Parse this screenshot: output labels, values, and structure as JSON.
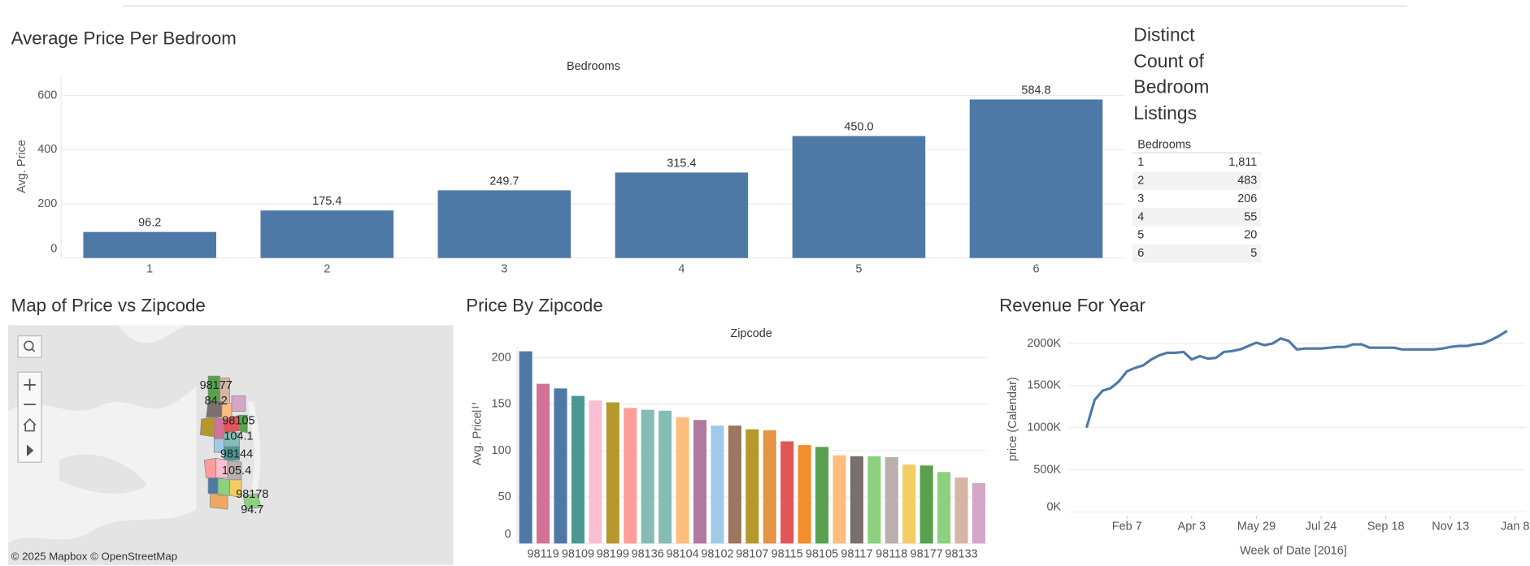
{
  "chart_data": [
    {
      "type": "bar",
      "title": "Average Price Per Bedroom",
      "header": "Bedrooms",
      "y_label": "Avg. Price",
      "categories": [
        "1",
        "2",
        "3",
        "4",
        "5",
        "6"
      ],
      "values": [
        96.2,
        175.4,
        249.7,
        315.4,
        450.0,
        584.8
      ],
      "value_labels": [
        "96.2",
        "175.4",
        "249.7",
        "315.4",
        "450.0",
        "584.8"
      ],
      "color": "#4e79a7",
      "ylim": [
        0,
        670
      ],
      "yticks": [
        0,
        200,
        400,
        600
      ],
      "grid": true
    },
    {
      "type": "bar",
      "title": "Price By Zipcode",
      "header": "Zipcode",
      "y_label": "Avg. Price",
      "categories": [
        null,
        "98119",
        null,
        "98109",
        null,
        "98199",
        null,
        "98136",
        null,
        "98104",
        null,
        "98102",
        null,
        "98107",
        null,
        "98115",
        null,
        "98105",
        null,
        "98117",
        null,
        "98118",
        null,
        "98177",
        null,
        "98133",
        null
      ],
      "values": [
        207,
        172,
        167,
        159,
        154,
        152,
        146,
        144,
        143,
        136,
        133,
        127,
        127,
        123,
        122,
        110,
        106,
        104,
        95,
        94,
        94,
        93,
        85,
        84,
        77,
        71,
        65
      ],
      "colors": [
        "#4e79a7",
        "#d37295",
        "#4e79a7",
        "#499894",
        "#fabfd2",
        "#b6992d",
        "#ff9d9a",
        "#86bcb6",
        "#86bcb6",
        "#ffbe7d",
        "#b07aa1",
        "#a0cbe8",
        "#9d7660",
        "#b6992d",
        "#e49444",
        "#e15759",
        "#f28e2b",
        "#59a14f",
        "#ffbe7d",
        "#79706e",
        "#8cd17d",
        "#bab0ac",
        "#f1ce63",
        "#59a14f",
        "#8cd17d",
        "#d7b5a6",
        "#d4a6c8"
      ],
      "ylim": [
        0,
        212
      ],
      "yticks": [
        0,
        50,
        100,
        150,
        200
      ],
      "grid": true
    },
    {
      "type": "line",
      "title": "Revenue For Year",
      "x_label": "Week of Date [2016]",
      "y_label": "price (Calendar)",
      "x": [
        "Jan 3",
        "Jan 10",
        "Jan 17",
        "Jan 24",
        "Jan 31",
        "Feb 7",
        "Feb 14",
        "Feb 21",
        "Feb 28",
        "Mar 6",
        "Mar 13",
        "Mar 20",
        "Mar 27",
        "Apr 3",
        "Apr 10",
        "Apr 17",
        "Apr 24",
        "May 1",
        "May 8",
        "May 15",
        "May 22",
        "May 29",
        "Jun 5",
        "Jun 12",
        "Jun 19",
        "Jun 26",
        "Jul 3",
        "Jul 10",
        "Jul 17",
        "Jul 24",
        "Jul 31",
        "Aug 7",
        "Aug 14",
        "Aug 21",
        "Aug 28",
        "Sep 4",
        "Sep 11",
        "Sep 18",
        "Sep 25",
        "Oct 2",
        "Oct 9",
        "Oct 16",
        "Oct 23",
        "Oct 30",
        "Nov 6",
        "Nov 13",
        "Nov 20",
        "Nov 27",
        "Dec 4",
        "Dec 11",
        "Dec 18",
        "Dec 25",
        "Jan 1"
      ],
      "values": [
        1000000,
        1330000,
        1440000,
        1470000,
        1550000,
        1670000,
        1710000,
        1740000,
        1810000,
        1860000,
        1890000,
        1890000,
        1900000,
        1810000,
        1850000,
        1820000,
        1830000,
        1900000,
        1910000,
        1930000,
        1970000,
        2010000,
        1980000,
        2000000,
        2060000,
        2030000,
        1930000,
        1940000,
        1940000,
        1940000,
        1950000,
        1960000,
        1960000,
        1990000,
        1990000,
        1950000,
        1950000,
        1950000,
        1950000,
        1930000,
        1930000,
        1930000,
        1930000,
        1930000,
        1940000,
        1960000,
        1970000,
        1970000,
        1990000,
        2000000,
        2040000,
        2090000,
        2150000
      ],
      "color": "#4e79a7",
      "ylim": [
        -50000,
        2300000
      ],
      "yticks": [
        {
          "value": 0,
          "label": "0K"
        },
        {
          "value": 500000,
          "label": "500K"
        },
        {
          "value": 1000000,
          "label": "1000K"
        },
        {
          "value": 1500000,
          "label": "1500K"
        },
        {
          "value": 2000000,
          "label": "2000K"
        }
      ],
      "xticks": [
        "Feb 7",
        "Apr 3",
        "May 29",
        "Jul 24",
        "Sep 18",
        "Nov 13",
        "Jan 8"
      ],
      "grid": true
    }
  ],
  "table": {
    "title": "Distinct Count of Bedroom Listings",
    "header": "Bedrooms",
    "rows": [
      [
        "1",
        "1,811"
      ],
      [
        "2",
        "483"
      ],
      [
        "3",
        "206"
      ],
      [
        "4",
        "55"
      ],
      [
        "5",
        "20"
      ],
      [
        "6",
        "5"
      ]
    ]
  },
  "map": {
    "title": "Map of Price vs Zipcode",
    "labels": [
      "98177",
      "84.2",
      "98105",
      "104.1",
      "98144",
      "105.4",
      "98178",
      "94.7"
    ],
    "attribution": "© 2025 Mapbox © OpenStreetMap"
  }
}
